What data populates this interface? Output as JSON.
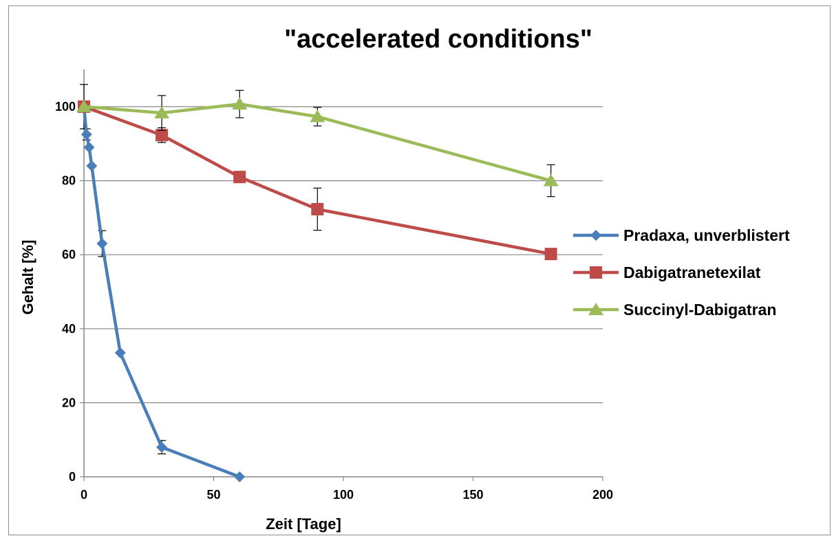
{
  "chart_data": {
    "type": "line",
    "title": "\"accelerated conditions\"",
    "xlabel": "Zeit [Tage]",
    "ylabel": "Gehalt [%]",
    "xlim": [
      0,
      200
    ],
    "ylim": [
      0,
      100
    ],
    "xticks": [
      0,
      50,
      100,
      150,
      200
    ],
    "yticks": [
      0,
      20,
      40,
      60,
      80,
      100
    ],
    "grid": "horizontal",
    "legend_position": "right",
    "series": [
      {
        "name": "Pradaxa, unverblistert",
        "color": "#4a7ebb",
        "marker": "diamond",
        "x": [
          0,
          1,
          2,
          3,
          7,
          14,
          30,
          60
        ],
        "y": [
          100,
          92.5,
          89,
          84,
          63,
          33.5,
          8,
          0
        ],
        "err": [
          6,
          1.5,
          0,
          0,
          3.5,
          0,
          1.8,
          0
        ]
      },
      {
        "name": "Dabigatranetexilat",
        "color": "#be4b48",
        "marker": "square",
        "x": [
          0,
          30,
          60,
          90,
          180
        ],
        "y": [
          100,
          92.3,
          81,
          72.3,
          60.2
        ],
        "err": [
          0,
          2,
          0,
          5.7,
          0
        ]
      },
      {
        "name": "Succinyl-Dabigatran",
        "color": "#9bbb59",
        "marker": "triangle",
        "x": [
          0,
          30,
          60,
          90,
          180
        ],
        "y": [
          100,
          98.3,
          100.7,
          97.3,
          80
        ],
        "err": [
          0,
          4.7,
          3.7,
          2.5,
          4.3
        ]
      }
    ]
  }
}
